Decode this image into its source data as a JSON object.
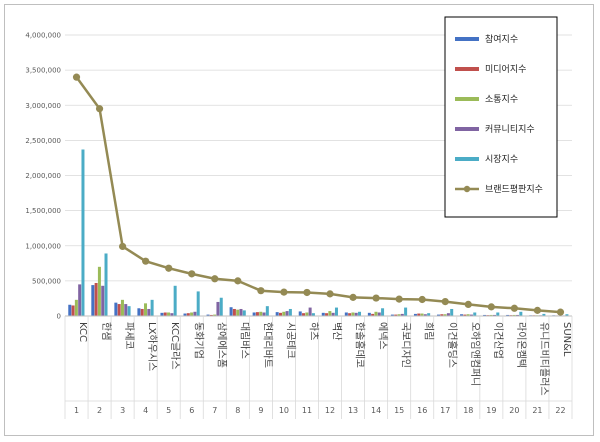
{
  "chart_data": {
    "type": "bar",
    "title": "",
    "xlabel": "",
    "ylabel": "",
    "ylim": [
      0,
      4000000
    ],
    "yticks": [
      "0",
      "500,000",
      "1,000,000",
      "1,500,000",
      "2,000,000",
      "2,500,000",
      "3,000,000",
      "3,500,000",
      "4,000,000"
    ],
    "grid": true,
    "legend_position": "right",
    "categories": [
      "KCC",
      "한샘",
      "파세코",
      "LX하우시스",
      "KCC글라스",
      "동화기업",
      "삼에에스폼",
      "대림바스",
      "현대리바트",
      "시공테크",
      "하츠",
      "벽산",
      "한솔홈데코",
      "에넥스",
      "국보디자인",
      "희림",
      "이건홀딩스",
      "오하임앤컴퍼니",
      "이건산업",
      "라이온켐텍",
      "유니드비티플러스",
      "SUN&L"
    ],
    "index_labels": [
      "1",
      "2",
      "3",
      "4",
      "5",
      "6",
      "7",
      "8",
      "9",
      "10",
      "11",
      "12",
      "13",
      "14",
      "15",
      "16",
      "17",
      "18",
      "19",
      "20",
      "21",
      "22"
    ],
    "series": [
      {
        "name": "참여지수",
        "type": "bar",
        "color": "#4472c4",
        "values": [
          160000,
          440000,
          190000,
          110000,
          45000,
          35000,
          20000,
          125000,
          50000,
          55000,
          65000,
          45000,
          50000,
          45000,
          20000,
          30000,
          20000,
          25000,
          15000,
          15000,
          10000,
          10000
        ]
      },
      {
        "name": "미디어지수",
        "type": "bar",
        "color": "#c0504d",
        "values": [
          150000,
          470000,
          170000,
          100000,
          50000,
          40000,
          15000,
          100000,
          55000,
          45000,
          40000,
          40000,
          40000,
          30000,
          20000,
          35000,
          25000,
          20000,
          12000,
          12000,
          10000,
          8000
        ]
      },
      {
        "name": "소통지수",
        "type": "bar",
        "color": "#9bbb59",
        "values": [
          230000,
          700000,
          230000,
          180000,
          50000,
          50000,
          20000,
          90000,
          60000,
          60000,
          50000,
          70000,
          50000,
          60000,
          25000,
          35000,
          25000,
          25000,
          15000,
          15000,
          10000,
          8000
        ]
      },
      {
        "name": "커뮤니티지수",
        "type": "bar",
        "color": "#8064a2",
        "values": [
          450000,
          430000,
          170000,
          100000,
          40000,
          60000,
          200000,
          100000,
          50000,
          70000,
          120000,
          45000,
          45000,
          50000,
          30000,
          25000,
          40000,
          20000,
          15000,
          15000,
          10000,
          8000
        ]
      },
      {
        "name": "시장지수",
        "type": "bar",
        "color": "#4bacc6",
        "values": [
          2370000,
          890000,
          140000,
          230000,
          430000,
          350000,
          260000,
          80000,
          140000,
          100000,
          40000,
          120000,
          60000,
          110000,
          120000,
          40000,
          100000,
          50000,
          50000,
          60000,
          30000,
          25000
        ]
      },
      {
        "name": "브랜드평판지수",
        "type": "line",
        "color": "#948a54",
        "values": [
          3400000,
          2950000,
          990000,
          780000,
          680000,
          600000,
          530000,
          500000,
          360000,
          340000,
          335000,
          315000,
          265000,
          255000,
          240000,
          235000,
          205000,
          165000,
          130000,
          110000,
          80000,
          55000
        ]
      }
    ]
  }
}
